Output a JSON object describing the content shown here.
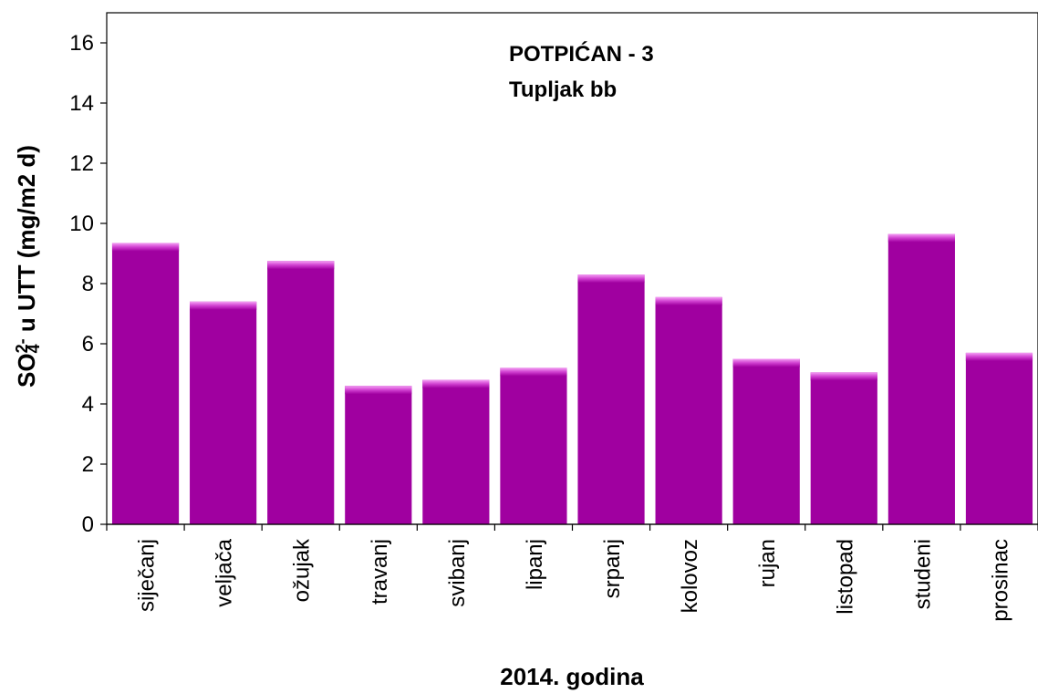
{
  "chart_data": {
    "type": "bar",
    "title": "POTPIĆAN - 3",
    "subtitle": "Tupljak bb",
    "xlabel": "2014. godina",
    "ylabel": {
      "prefix": "SO",
      "sub": "4",
      "sup": "2-",
      "suffix": " u UTT (mg/m2 d)"
    },
    "ylim": [
      0,
      17
    ],
    "yticks": [
      0,
      2,
      4,
      6,
      8,
      10,
      12,
      14,
      16
    ],
    "grid": false,
    "categories": [
      "siječanj",
      "veljača",
      "ožujak",
      "travanj",
      "svibanj",
      "lipanj",
      "srpanj",
      "kolovoz",
      "rujan",
      "listopad",
      "studeni",
      "prosinac"
    ],
    "values": [
      9.35,
      7.4,
      8.75,
      4.6,
      4.8,
      5.2,
      8.3,
      7.55,
      5.5,
      5.05,
      9.65,
      5.7
    ],
    "bar_color": "#a000a0"
  }
}
